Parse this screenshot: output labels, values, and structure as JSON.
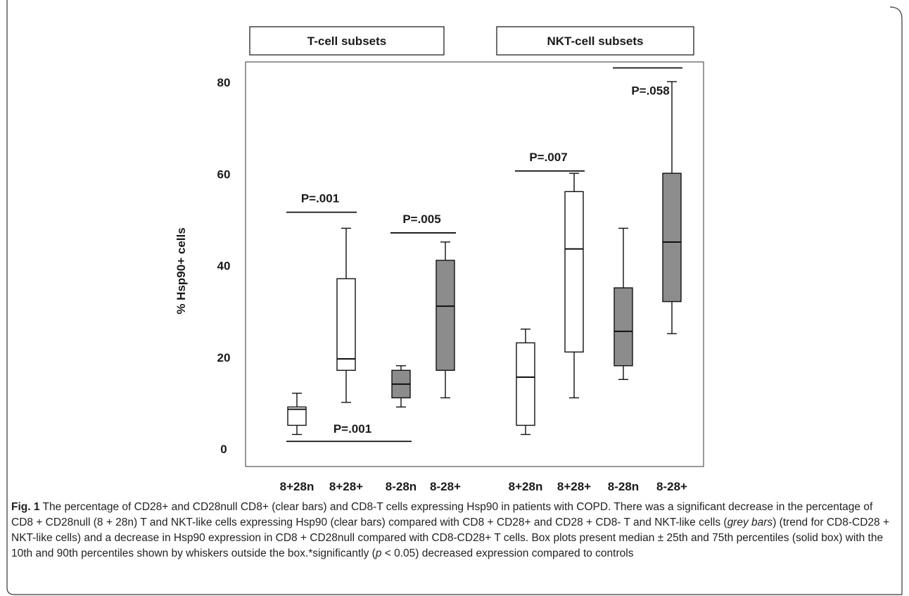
{
  "chart_data": {
    "type": "box",
    "ylabel": "% Hsp90+ cells",
    "yticks": [
      0,
      20,
      40,
      60,
      80
    ],
    "ylim": [
      -5,
      88
    ],
    "group_labels": [
      "T-cell subsets",
      "NKT-cell subsets"
    ],
    "categories": [
      "8+28n",
      "8+28+",
      "8-28n",
      "8-28+",
      "8+28n",
      "8+28+",
      "8-28n",
      "8-28+"
    ],
    "boxes": [
      {
        "group": "T-cell subsets",
        "category": "8+28n",
        "fill": "clear",
        "whisker_low": 3,
        "q1": 5,
        "median": 8.5,
        "q3": 9,
        "whisker_high": 12
      },
      {
        "group": "T-cell subsets",
        "category": "8+28+",
        "fill": "clear",
        "whisker_low": 10,
        "q1": 17,
        "median": 19.5,
        "q3": 37,
        "whisker_high": 48
      },
      {
        "group": "T-cell subsets",
        "category": "8-28n",
        "fill": "grey",
        "whisker_low": 9,
        "q1": 11,
        "median": 14,
        "q3": 17,
        "whisker_high": 18
      },
      {
        "group": "T-cell subsets",
        "category": "8-28+",
        "fill": "grey",
        "whisker_low": 11,
        "q1": 17,
        "median": 31,
        "q3": 41,
        "whisker_high": 45
      },
      {
        "group": "NKT-cell subsets",
        "category": "8+28n",
        "fill": "clear",
        "whisker_low": 3,
        "q1": 5,
        "median": 15.5,
        "q3": 23,
        "whisker_high": 26
      },
      {
        "group": "NKT-cell subsets",
        "category": "8+28+",
        "fill": "clear",
        "whisker_low": 11,
        "q1": 21,
        "median": 43.5,
        "q3": 56,
        "whisker_high": 60
      },
      {
        "group": "NKT-cell subsets",
        "category": "8-28n",
        "fill": "grey",
        "whisker_low": 15,
        "q1": 18,
        "median": 25.5,
        "q3": 35,
        "whisker_high": 48
      },
      {
        "group": "NKT-cell subsets",
        "category": "8-28+",
        "fill": "grey",
        "whisker_low": 25,
        "q1": 32,
        "median": 45,
        "q3": 60,
        "whisker_high": 80
      }
    ],
    "annotations": [
      {
        "text": "P=.001",
        "from": 0,
        "to": 1,
        "y": 51.5
      },
      {
        "text": "P=.005",
        "from": 2,
        "to": 3,
        "y": 47
      },
      {
        "text": "P=.001",
        "from": 0,
        "to": 2,
        "y": 1.5
      },
      {
        "text": "P=.007",
        "from": 4,
        "to": 5,
        "y": 60.5
      },
      {
        "text": "P=.058",
        "from": 6,
        "to": 7,
        "y": 83
      }
    ],
    "colors": {
      "clear": "#ffffff",
      "grey": "#8c8c8c",
      "frame": "#555555",
      "text": "#1a1a1a"
    }
  },
  "caption": {
    "fig_label": "Fig. 1",
    "part1": " The percentage of CD28+ and CD28null CD8+ (clear bars) and CD8-T cells expressing Hsp90 in patients with COPD. There was a significant decrease in the percentage of CD8 + CD28null (8 + 28n) T and NKT-like cells expressing Hsp90 (clear bars) compared with CD8 + CD28+ and CD28 + CD8- T and NKT-like cells (",
    "italic1": "grey bars",
    "part2": ") (trend for CD8-CD28 + NKT-like cells) and a decrease in Hsp90 expression in CD8 + CD28null compared with CD8-CD28+ T cells. Box plots present median ± 25th and 75th percentiles (solid box) with the 10th and 90th percentiles shown by whiskers outside the box.*significantly (",
    "italic2": "p",
    "part3": " < 0.05) decreased expression compared to controls"
  }
}
